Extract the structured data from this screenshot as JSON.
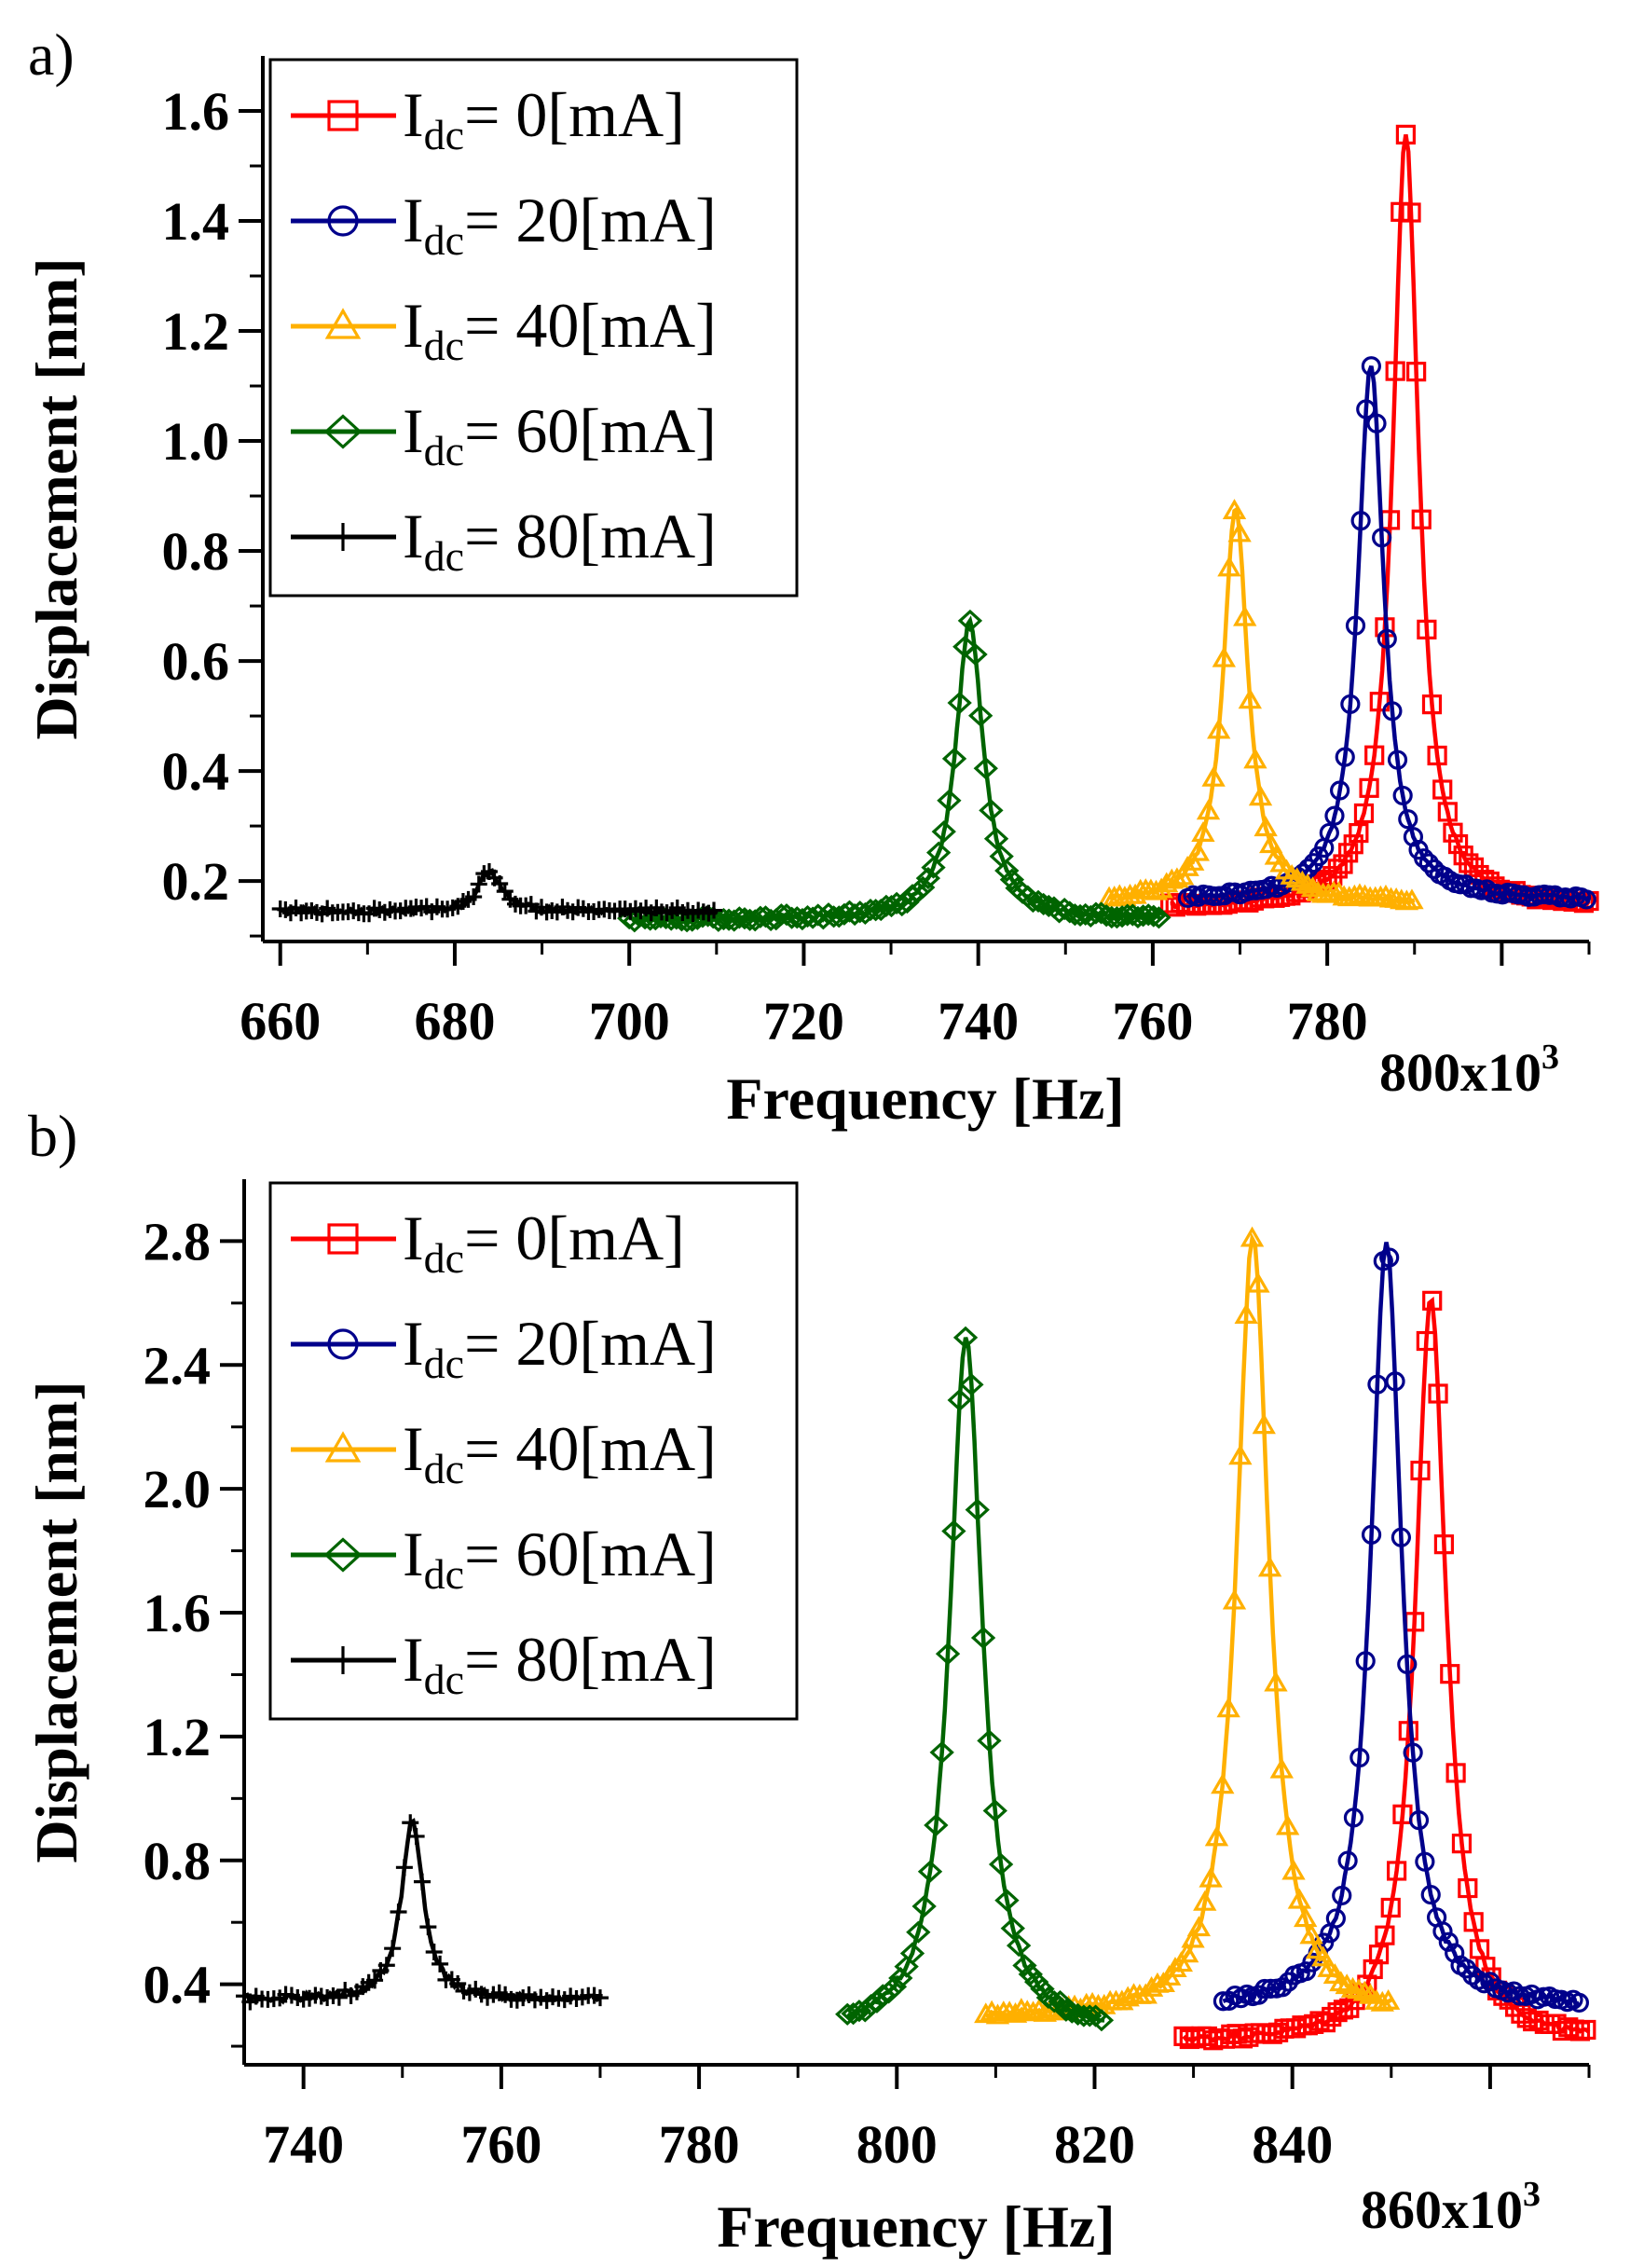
{
  "chart_data": [
    {
      "panel_label": "a)",
      "type": "line",
      "xlabel": "Frequency [Hz]",
      "ylabel": "Displacement [nm]",
      "x_multiplier": "800x10",
      "x_multiplier_exp": "3",
      "xlim": [
        658,
        810
      ],
      "ylim": [
        0.09,
        1.7
      ],
      "x_ticks": [
        660,
        680,
        700,
        720,
        740,
        760,
        780
      ],
      "y_ticks": [
        0.2,
        0.4,
        0.6,
        0.8,
        1.0,
        1.2,
        1.4,
        1.6
      ],
      "y_tick_labels": [
        "0.2",
        "0.4",
        "0.6",
        "0.8",
        "1.0",
        "1.2",
        "1.4",
        "1.6"
      ],
      "legend_position": "top-left",
      "series": [
        {
          "name_main": "I",
          "name_sub": "dc",
          "name_rest": "= 0[mA]",
          "color": "#ff0000",
          "marker": "square",
          "range": [
            762,
            810
          ],
          "peak_x": 789,
          "peak_y": 1.56,
          "baseline": 0.15,
          "width": 1.8,
          "noise": 0.004
        },
        {
          "name_main": "I",
          "name_sub": "dc",
          "name_rest": "= 20[mA]",
          "color": "#00008b",
          "marker": "circle",
          "range": [
            764,
            810
          ],
          "peak_x": 785,
          "peak_y": 1.14,
          "baseline": 0.165,
          "width": 1.8,
          "noise": 0.004
        },
        {
          "name_main": "I",
          "name_sub": "dc",
          "name_rest": "= 40[mA]",
          "color": "#ffb000",
          "marker": "triangle",
          "range": [
            755,
            790
          ],
          "peak_x": 769.5,
          "peak_y": 0.88,
          "baseline": 0.16,
          "width": 1.7,
          "noise": 0.005
        },
        {
          "name_main": "I",
          "name_sub": "dc",
          "name_rest": "= 60[mA]",
          "color": "#006400",
          "marker": "diamond",
          "range": [
            700,
            761
          ],
          "peak_x": 739,
          "peak_y": 0.67,
          "baseline": 0.13,
          "width": 1.9,
          "noise": 0.005
        },
        {
          "name_main": "I",
          "name_sub": "dc",
          "name_rest": "= 80[mA]",
          "color": "#000000",
          "marker": "plus",
          "range": [
            660,
            710
          ],
          "peak_x": 684,
          "peak_y": 0.22,
          "baseline": 0.145,
          "width": 1.5,
          "noise": 0.006
        }
      ]
    },
    {
      "panel_label": "b)",
      "type": "line",
      "xlabel": "Frequency [Hz]",
      "ylabel": "Displacement [nm]",
      "x_multiplier": "860x10",
      "x_multiplier_exp": "3",
      "xlim": [
        734,
        870
      ],
      "ylim": [
        0.14,
        3.0
      ],
      "x_ticks": [
        740,
        760,
        780,
        800,
        820,
        840
      ],
      "y_ticks": [
        0.4,
        0.8,
        1.2,
        1.6,
        2.0,
        2.4,
        2.8
      ],
      "y_tick_labels": [
        "0.4",
        "0.8",
        "1.2",
        "1.6",
        "2.0",
        "2.4",
        "2.8"
      ],
      "legend_position": "top-left",
      "series": [
        {
          "name_main": "I",
          "name_sub": "dc",
          "name_rest": "= 0[mA]",
          "color": "#ff0000",
          "marker": "square",
          "range": [
            829,
            870
          ],
          "peak_x": 854,
          "peak_y": 2.62,
          "baseline": 0.21,
          "width": 1.9,
          "noise": 0.01
        },
        {
          "name_main": "I",
          "name_sub": "dc",
          "name_rest": "= 20[mA]",
          "color": "#00008b",
          "marker": "circle",
          "range": [
            833,
            869
          ],
          "peak_x": 849.5,
          "peak_y": 2.8,
          "baseline": 0.32,
          "width": 1.9,
          "noise": 0.01
        },
        {
          "name_main": "I",
          "name_sub": "dc",
          "name_rest": "= 40[mA]",
          "color": "#ffb000",
          "marker": "triangle",
          "range": [
            809,
            850
          ],
          "peak_x": 836,
          "peak_y": 2.82,
          "baseline": 0.29,
          "width": 2.0,
          "noise": 0.01
        },
        {
          "name_main": "I",
          "name_sub": "dc",
          "name_rest": "= 60[mA]",
          "color": "#006400",
          "marker": "diamond",
          "range": [
            795,
            821
          ],
          "peak_x": 807,
          "peak_y": 2.49,
          "baseline": 0.24,
          "width": 2.0,
          "noise": 0.01
        },
        {
          "name_main": "I",
          "name_sub": "dc",
          "name_rest": "= 80[mA]",
          "color": "#000000",
          "marker": "plus",
          "range": [
            734,
            770
          ],
          "peak_x": 751,
          "peak_y": 0.94,
          "baseline": 0.35,
          "width": 1.3,
          "noise": 0.012
        }
      ]
    }
  ]
}
